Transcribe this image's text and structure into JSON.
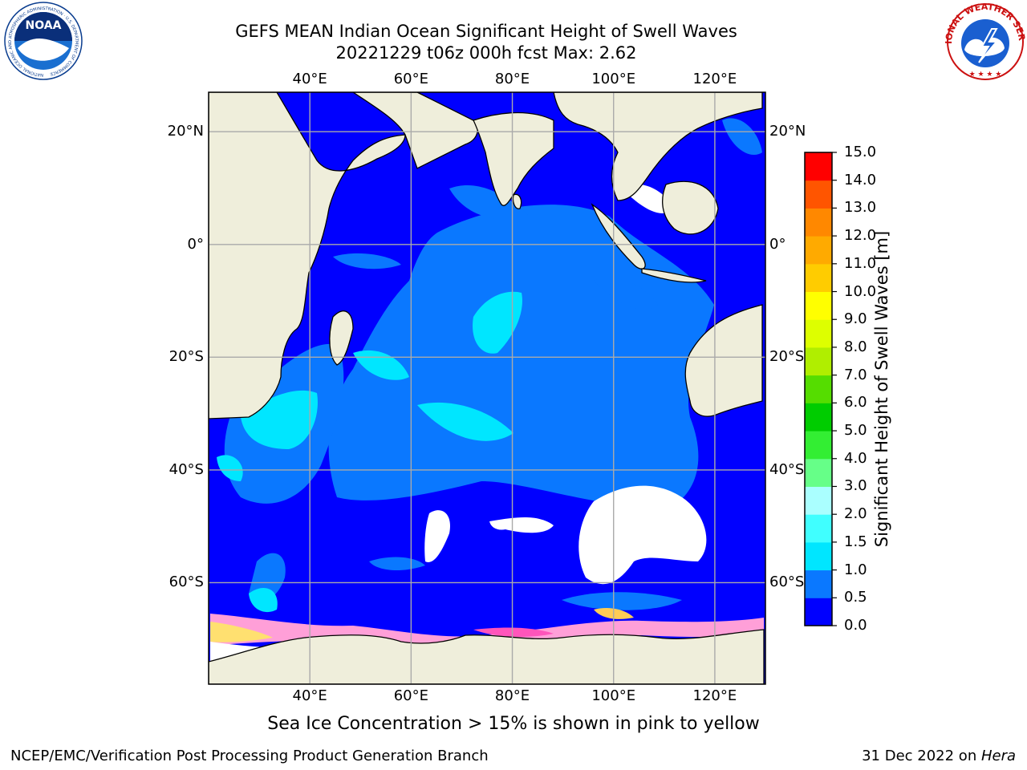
{
  "header": {
    "title_line1": "GEFS MEAN Indian Ocean Significant Height of Swell Waves",
    "title_line2": "20221229 t06z 000h fcst   Max: 2.62"
  },
  "logos": {
    "noaa_text": "NOAA",
    "noaa_ring_text": "NATIONAL OCEANIC AND ATMOSPHERIC ADMINISTRATION · U.S. DEPARTMENT OF COMMERCE",
    "nws_ring_text": "NATIONAL WEATHER SERVICE"
  },
  "map": {
    "lon_labels": [
      "40°E",
      "60°E",
      "80°E",
      "100°E",
      "120°E"
    ],
    "lat_labels": [
      "20°N",
      "0°",
      "20°S",
      "40°S",
      "60°S"
    ],
    "lon_values": [
      40,
      60,
      80,
      100,
      120
    ],
    "lat_values": [
      20,
      0,
      -20,
      -40,
      -60
    ],
    "lon_range": [
      20,
      130
    ],
    "lat_range": [
      -78,
      27
    ],
    "grid": true,
    "land_color": "#efeedb",
    "ocean_base_color": "#0000ff"
  },
  "colorbar": {
    "label": "Significant Height of Swell Waves [m]",
    "ticks": [
      "0.0",
      "0.5",
      "1.0",
      "1.5",
      "2.0",
      "3.0",
      "4.0",
      "5.0",
      "6.0",
      "7.0",
      "8.0",
      "9.0",
      "10.0",
      "11.0",
      "12.0",
      "13.0",
      "14.0",
      "15.0"
    ],
    "colors": [
      "#0000ff",
      "#0a78ff",
      "#00e6ff",
      "#40ffff",
      "#aaffff",
      "#66ff88",
      "#33ee33",
      "#00cc00",
      "#55dd00",
      "#b0ee00",
      "#ddff00",
      "#ffff00",
      "#ffcc00",
      "#ffaa00",
      "#ff8800",
      "#ff5500",
      "#ff2200",
      "#ff0000"
    ]
  },
  "caption": "Sea Ice Concentration > 15% is shown in pink to yellow",
  "footer": {
    "left": "NCEP/EMC/Verification Post Processing Product Generation Branch",
    "right_prefix": "31 Dec 2022 on ",
    "right_machine": "Hera"
  }
}
